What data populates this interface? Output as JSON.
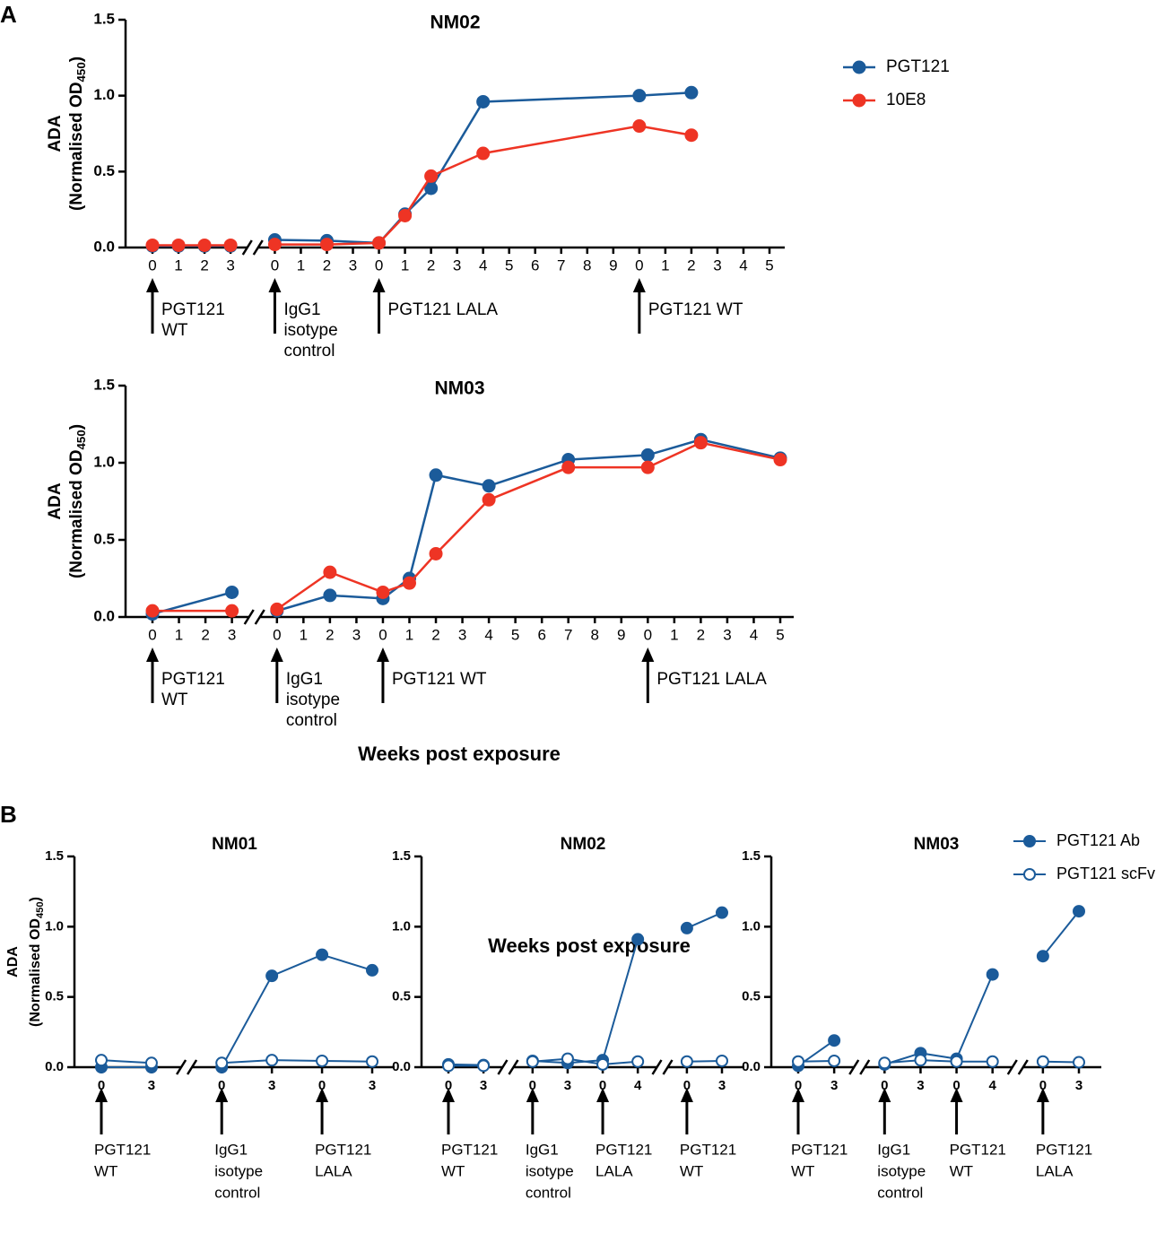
{
  "panels": [
    {
      "label": "A",
      "xlabel": "Weeks post exposure"
    },
    {
      "label": "B",
      "xlabel": "Weeks post exposure"
    }
  ],
  "chart_data": [
    {
      "type": "line",
      "title": "NM02",
      "ylabel": {
        "main": "ADA",
        "line2": "(Normalised OD",
        "sub": "450",
        "end": ")"
      },
      "ylim": [
        0,
        1.5
      ],
      "yticks": [
        {
          "value": 0,
          "label": "0.0"
        },
        {
          "value": 0.5,
          "label": "0.5"
        },
        {
          "value": 1,
          "label": "1.0"
        },
        {
          "value": 1.5,
          "label": "1.5"
        }
      ],
      "xlim": [
        0,
        23
      ],
      "xticks": [
        {
          "value": 0,
          "label": "0"
        },
        {
          "value": 1,
          "label": "1"
        },
        {
          "value": 2,
          "label": "2"
        },
        {
          "value": 3,
          "label": "3"
        },
        {
          "value": 4,
          "label": "0"
        },
        {
          "value": 5,
          "label": "1"
        },
        {
          "value": 6,
          "label": "2"
        },
        {
          "value": 7,
          "label": "3"
        },
        {
          "value": 8,
          "label": "0"
        },
        {
          "value": 9,
          "label": "1"
        },
        {
          "value": 10,
          "label": "2"
        },
        {
          "value": 11,
          "label": "3"
        },
        {
          "value": 12,
          "label": "4"
        },
        {
          "value": 13,
          "label": "5"
        },
        {
          "value": 14,
          "label": "6"
        },
        {
          "value": 15,
          "label": "7"
        },
        {
          "value": 16,
          "label": "8"
        },
        {
          "value": 17,
          "label": "9"
        },
        {
          "value": 18,
          "label": "0"
        },
        {
          "value": 19,
          "label": "1"
        },
        {
          "value": 20,
          "label": "2"
        },
        {
          "value": 21,
          "label": "3"
        },
        {
          "value": 22,
          "label": "4"
        },
        {
          "value": 23,
          "label": "5"
        }
      ],
      "xbreaks": [
        3.5
      ],
      "arrows": [
        [
          "PGT121",
          "WT"
        ],
        [
          "IgG1",
          "isotype",
          "control"
        ],
        [
          "PGT121 LALA"
        ],
        [
          "PGT121 WT"
        ]
      ],
      "legend": "right",
      "series": [
        {
          "name": "PGT121",
          "color": "#1b5b9a",
          "marker": "filled",
          "x": [
            0,
            1,
            2,
            3,
            null,
            4,
            6,
            8,
            9,
            10,
            12,
            18,
            20
          ],
          "values": [
            0.01,
            0.01,
            0.01,
            0.01,
            null,
            0.05,
            0.045,
            0.03,
            0.22,
            0.39,
            0.96,
            1.0,
            1.02
          ]
        },
        {
          "name": "10E8",
          "color": "#ee3424",
          "marker": "filled",
          "x": [
            0,
            1,
            2,
            3,
            null,
            4,
            6,
            8,
            9,
            10,
            12,
            18,
            20
          ],
          "values": [
            0.015,
            0.015,
            0.015,
            0.015,
            null,
            0.02,
            0.02,
            0.03,
            0.21,
            0.47,
            0.62,
            0.8,
            0.74
          ]
        }
      ]
    },
    {
      "type": "line",
      "title": "NM03",
      "ylabel": {
        "main": "ADA",
        "line2": "(Normalised OD",
        "sub": "450",
        "end": ")"
      },
      "ylim": [
        0,
        1.5
      ],
      "yticks": [
        {
          "value": 0,
          "label": "0.0"
        },
        {
          "value": 0.5,
          "label": "0.5"
        },
        {
          "value": 1,
          "label": "1.0"
        },
        {
          "value": 1.5,
          "label": "1.5"
        }
      ],
      "xlim": [
        0,
        23
      ],
      "xticks": [
        {
          "value": 0,
          "label": "0"
        },
        {
          "value": 1,
          "label": "1"
        },
        {
          "value": 2,
          "label": "2"
        },
        {
          "value": 3,
          "label": "3"
        },
        {
          "value": 4,
          "label": "0"
        },
        {
          "value": 5,
          "label": "1"
        },
        {
          "value": 6,
          "label": "2"
        },
        {
          "value": 7,
          "label": "3"
        },
        {
          "value": 8,
          "label": "0"
        },
        {
          "value": 9,
          "label": "1"
        },
        {
          "value": 10,
          "label": "2"
        },
        {
          "value": 11,
          "label": "3"
        },
        {
          "value": 12,
          "label": "4"
        },
        {
          "value": 13,
          "label": "5"
        },
        {
          "value": 14,
          "label": "6"
        },
        {
          "value": 15,
          "label": "7"
        },
        {
          "value": 16,
          "label": "8"
        },
        {
          "value": 17,
          "label": "9"
        },
        {
          "value": 18,
          "label": "0"
        },
        {
          "value": 19,
          "label": "1"
        },
        {
          "value": 20,
          "label": "2"
        },
        {
          "value": 21,
          "label": "3"
        },
        {
          "value": 22,
          "label": "4"
        },
        {
          "value": 23,
          "label": "5"
        }
      ],
      "xbreaks": [
        3.5
      ],
      "arrows": [
        [
          "PGT121",
          "WT"
        ],
        [
          "IgG1",
          "isotype",
          "control"
        ],
        [
          "PGT121 WT"
        ],
        [
          "PGT121 LALA"
        ]
      ],
      "series": [
        {
          "color": "#1b5b9a",
          "marker": "filled",
          "x": [
            0,
            3,
            null,
            4,
            6,
            8,
            9,
            10,
            12,
            15,
            18,
            20,
            23
          ],
          "values": [
            0.02,
            0.16,
            null,
            0.04,
            0.14,
            0.12,
            0.25,
            0.92,
            0.85,
            1.02,
            1.05,
            1.15,
            1.03
          ]
        },
        {
          "color": "#ee3424",
          "marker": "filled",
          "x": [
            0,
            3,
            null,
            4,
            6,
            8,
            9,
            10,
            12,
            15,
            18,
            20,
            23
          ],
          "values": [
            0.04,
            0.04,
            null,
            0.05,
            0.29,
            0.16,
            0.22,
            0.41,
            0.76,
            0.97,
            0.97,
            1.13,
            1.02
          ]
        }
      ]
    },
    {
      "type": "line",
      "title": "NM01",
      "ylabel": {
        "main": "ADA",
        "line2": "(Normalised OD",
        "sub": "450",
        "end": ")"
      },
      "ylim": [
        0,
        1.5
      ],
      "yticks": [
        {
          "value": 0,
          "label": "0.0"
        },
        {
          "value": 0.5,
          "label": "0.5"
        },
        {
          "value": 1,
          "label": "1.0"
        },
        {
          "value": 1.5,
          "label": "1.5"
        }
      ],
      "xlim": [
        0,
        5
      ],
      "xticks": [
        {
          "value": 0,
          "label": "0"
        },
        {
          "value": 1,
          "label": "3"
        },
        {
          "value": 2,
          "label": "0"
        },
        {
          "value": 3,
          "label": "3"
        },
        {
          "value": 4,
          "label": "0"
        },
        {
          "value": 5,
          "label": "3"
        }
      ],
      "xbreaks": [
        1.5
      ],
      "arrows": [
        [
          "PGT121",
          "WT"
        ],
        [
          "IgG1",
          "isotype",
          "control"
        ],
        [
          "PGT121",
          "LALA"
        ]
      ],
      "series": [
        {
          "color": "#1b5b9a",
          "marker": "filled",
          "x": [
            0,
            1,
            null,
            2,
            3,
            4,
            5
          ],
          "values": [
            0.0,
            0.0,
            null,
            0.0,
            0.65,
            0.8,
            0.69
          ]
        },
        {
          "color": "#1b5b9a",
          "marker": "open",
          "x": [
            0,
            1,
            null,
            2,
            3,
            4,
            5
          ],
          "values": [
            0.05,
            0.03,
            null,
            0.03,
            0.05,
            0.045,
            0.04
          ]
        }
      ]
    },
    {
      "type": "line",
      "title": "NM02",
      "ylim": [
        0,
        1.5
      ],
      "yticks": [
        {
          "value": 0,
          "label": "0.0"
        },
        {
          "value": 0.5,
          "label": "0.5"
        },
        {
          "value": 1,
          "label": "1.0"
        },
        {
          "value": 1.5,
          "label": "1.5"
        }
      ],
      "xlim": [
        0,
        7
      ],
      "xticks": [
        {
          "value": 0,
          "label": "0"
        },
        {
          "value": 1,
          "label": "3"
        },
        {
          "value": 2,
          "label": "0"
        },
        {
          "value": 3,
          "label": "3"
        },
        {
          "value": 4,
          "label": "0"
        },
        {
          "value": 5,
          "label": "4"
        },
        {
          "value": 6,
          "label": "0"
        },
        {
          "value": 7,
          "label": "3"
        }
      ],
      "xbreaks": [
        1.5,
        5.5
      ],
      "arrows": [
        [
          "PGT121",
          "WT"
        ],
        [
          "IgG1",
          "isotype",
          "control"
        ],
        [
          "PGT121",
          "LALA"
        ],
        [
          "PGT121",
          "WT"
        ]
      ],
      "series": [
        {
          "color": "#1b5b9a",
          "marker": "filled",
          "x": [
            0,
            1,
            null,
            2,
            3,
            4,
            5,
            null,
            6,
            7
          ],
          "values": [
            0.02,
            0.015,
            null,
            0.045,
            0.03,
            0.05,
            0.91,
            null,
            0.99,
            1.1
          ]
        },
        {
          "color": "#1b5b9a",
          "marker": "open",
          "x": [
            0,
            1,
            null,
            2,
            3,
            4,
            5,
            null,
            6,
            7
          ],
          "values": [
            0.01,
            0.01,
            null,
            0.04,
            0.06,
            0.02,
            0.04,
            null,
            0.04,
            0.045
          ]
        }
      ]
    },
    {
      "type": "line",
      "title": "NM03",
      "ylim": [
        0,
        1.5
      ],
      "yticks": [
        {
          "value": 0,
          "label": "0.0"
        },
        {
          "value": 0.5,
          "label": "0.5"
        },
        {
          "value": 1,
          "label": "1.0"
        },
        {
          "value": 1.5,
          "label": "1.5"
        }
      ],
      "xlim": [
        0,
        7
      ],
      "xticks": [
        {
          "value": 0,
          "label": "0"
        },
        {
          "value": 1,
          "label": "3"
        },
        {
          "value": 2,
          "label": "0"
        },
        {
          "value": 3,
          "label": "3"
        },
        {
          "value": 4,
          "label": "0"
        },
        {
          "value": 5,
          "label": "4"
        },
        {
          "value": 6,
          "label": "0"
        },
        {
          "value": 7,
          "label": "3"
        }
      ],
      "xbreaks": [
        1.5,
        5.5
      ],
      "arrows": [
        [
          "PGT121",
          "WT"
        ],
        [
          "IgG1",
          "isotype",
          "control"
        ],
        [
          "PGT121",
          "WT"
        ],
        [
          "PGT121",
          "LALA"
        ]
      ],
      "legend": "right",
      "series": [
        {
          "name": "PGT121 Ab",
          "color": "#1b5b9a",
          "marker": "filled",
          "x": [
            0,
            1,
            null,
            2,
            3,
            4,
            5,
            null,
            6,
            7
          ],
          "values": [
            0.01,
            0.19,
            null,
            0.02,
            0.1,
            0.06,
            0.66,
            null,
            0.79,
            1.11
          ]
        },
        {
          "name": "PGT121 scFv",
          "color": "#1b5b9a",
          "marker": "open",
          "x": [
            0,
            1,
            null,
            2,
            3,
            4,
            5,
            null,
            6,
            7
          ],
          "values": [
            0.04,
            0.045,
            null,
            0.03,
            0.05,
            0.04,
            0.04,
            null,
            0.04,
            0.035
          ]
        }
      ]
    }
  ]
}
